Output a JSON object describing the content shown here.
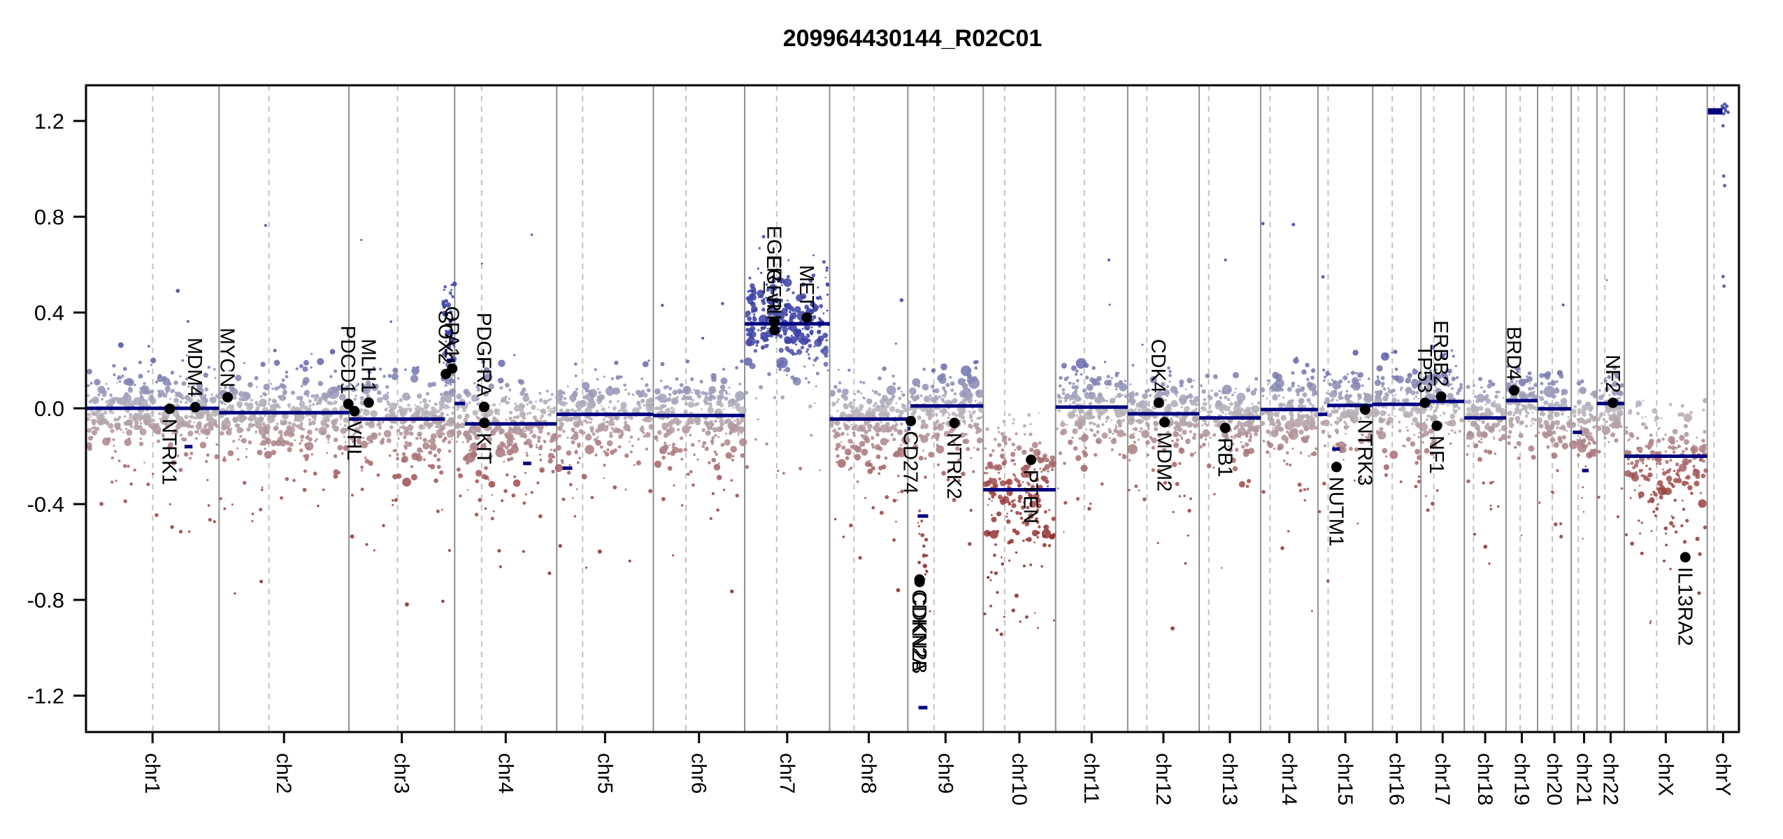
{
  "title": "209964430144_R02C01",
  "chart_data": {
    "type": "scatter",
    "subtype": "genome-wide-copy-number-plot",
    "title": "209964430144_R02C01",
    "xlabel": "",
    "ylabel": "",
    "ylim": [
      -1.35,
      1.35
    ],
    "yticks": [
      1.2,
      0.8,
      0.4,
      0.0,
      -0.4,
      -0.8,
      -1.2
    ],
    "ytick_labels": [
      "1.2",
      "0.8",
      "0.4",
      "0.0",
      "-0.4",
      "-0.8",
      "-1.2"
    ],
    "grid": {
      "chromosome_boundaries": "solid",
      "centromeres": "dashed"
    },
    "noise_seed": 424242,
    "chromosomes": [
      {
        "name": "chr1",
        "size_mb": 249.25,
        "centromere_mb": 125.0,
        "cloud": {
          "level": 0.0,
          "density": 1.6
        }
      },
      {
        "name": "chr2",
        "size_mb": 243.2,
        "centromere_mb": 93.3,
        "cloud": {
          "level": -0.018,
          "density": 1.6
        }
      },
      {
        "name": "chr3",
        "size_mb": 198.0,
        "centromere_mb": 91.0,
        "cloud": {
          "level": -0.045,
          "density": 1.6
        }
      },
      {
        "name": "chr4",
        "size_mb": 191.15,
        "centromere_mb": 50.4,
        "cloud": {
          "level": -0.06,
          "density": 1.6
        }
      },
      {
        "name": "chr5",
        "size_mb": 180.9,
        "centromere_mb": 48.4,
        "cloud": {
          "level": -0.025,
          "density": 1.6
        }
      },
      {
        "name": "chr6",
        "size_mb": 171.1,
        "centromere_mb": 61.0,
        "cloud": {
          "level": -0.03,
          "density": 1.6
        }
      },
      {
        "name": "chr7",
        "size_mb": 159.14,
        "centromere_mb": 59.9,
        "cloud": {
          "level": 0.353,
          "spread": 0.105,
          "negP": 0.12,
          "negScale": 0.22,
          "posP": 0.1,
          "posScale": 0.09,
          "density": 1.9,
          "vmin": -0.28
        }
      },
      {
        "name": "chr8",
        "size_mb": 146.36,
        "centromere_mb": 45.6,
        "cloud": {
          "level": -0.045,
          "density": 1.6
        }
      },
      {
        "name": "chr9",
        "size_mb": 141.2,
        "centromere_mb": 49.0,
        "cloud": {
          "level": 0.0,
          "density": 1.6
        }
      },
      {
        "name": "chr10",
        "size_mb": 135.53,
        "centromere_mb": 40.2,
        "cloud": {
          "level": -0.3,
          "spread": 0.14,
          "negP": 0.32,
          "negScale": 0.22,
          "posP": 0.02,
          "posScale": 0.04,
          "density": 1.7,
          "vmax": -0.01
        }
      },
      {
        "name": "chr11",
        "size_mb": 135.0,
        "centromere_mb": 53.7,
        "cloud": {
          "level": 0.005,
          "density": 1.6
        }
      },
      {
        "name": "chr12",
        "size_mb": 133.85,
        "centromere_mb": 35.8,
        "cloud": {
          "level": -0.023,
          "density": 1.6
        }
      },
      {
        "name": "chr13",
        "size_mb": 115.17,
        "centromere_mb": 17.9,
        "cloud": {
          "level": -0.04,
          "density": 1.6
        }
      },
      {
        "name": "chr14",
        "size_mb": 107.35,
        "centromere_mb": 17.6,
        "cloud": {
          "level": -0.005,
          "density": 1.6
        }
      },
      {
        "name": "chr15",
        "size_mb": 102.53,
        "centromere_mb": 19.0,
        "cloud": {
          "level": 0.0,
          "density": 1.6
        }
      },
      {
        "name": "chr16",
        "size_mb": 90.35,
        "centromere_mb": 36.6,
        "cloud": {
          "level": 0.017,
          "density": 1.6
        }
      },
      {
        "name": "chr17",
        "size_mb": 81.2,
        "centromere_mb": 24.0,
        "cloud": {
          "level": 0.029,
          "density": 1.6
        }
      },
      {
        "name": "chr18",
        "size_mb": 78.08,
        "centromere_mb": 17.2,
        "cloud": {
          "level": -0.04,
          "density": 1.6
        }
      },
      {
        "name": "chr19",
        "size_mb": 59.13,
        "centromere_mb": 26.5,
        "cloud": {
          "level": 0.032,
          "density": 1.6
        }
      },
      {
        "name": "chr20",
        "size_mb": 63.03,
        "centromere_mb": 27.5,
        "cloud": {
          "level": -0.002,
          "density": 1.6
        }
      },
      {
        "name": "chr21",
        "size_mb": 48.13,
        "centromere_mb": 13.2,
        "cloud": {
          "level": -0.07,
          "density": 1.55
        }
      },
      {
        "name": "chr22",
        "size_mb": 51.3,
        "centromere_mb": 14.7,
        "cloud": {
          "level": 0.02,
          "density": 1.6
        }
      },
      {
        "name": "chrX",
        "size_mb": 155.27,
        "centromere_mb": 60.6,
        "cloud": {
          "level": -0.2,
          "spread": 0.11,
          "negP": 0.26,
          "negScale": 0.18,
          "posP": 0.02,
          "posScale": 0.05,
          "density": 1.45,
          "vmax": 0.04
        }
      },
      {
        "name": "chrY",
        "size_mb": 59.37,
        "centromere_mb": 12.5,
        "cloud": {
          "discrete_points": [
            [
              0.55,
              1.27
            ],
            [
              0.62,
              1.262
            ],
            [
              0.5,
              1.255
            ],
            [
              0.44,
              1.248
            ],
            [
              0.58,
              1.242
            ],
            [
              0.66,
              1.236
            ],
            [
              0.52,
              1.23
            ],
            [
              0.47,
              1.262
            ],
            [
              0.56,
              1.252
            ],
            [
              0.4,
              1.24
            ],
            [
              0.5,
              1.18
            ],
            [
              0.52,
              0.97
            ],
            [
              0.55,
              0.93
            ],
            [
              0.5,
              0.55
            ],
            [
              0.53,
              0.51
            ]
          ]
        }
      }
    ],
    "segments": [
      {
        "chr": "chr1",
        "start_frac": 0.0,
        "end_frac": 1.0,
        "value": 0.0
      },
      {
        "chr": "chr1",
        "start_frac": 0.74,
        "end_frac": 0.8,
        "value": -0.16
      },
      {
        "chr": "chr2",
        "start_frac": 0.0,
        "end_frac": 1.0,
        "value": -0.018
      },
      {
        "chr": "chr3",
        "start_frac": 0.0,
        "end_frac": 0.905,
        "value": -0.045
      },
      {
        "chr": "chr3",
        "start_frac": 0.925,
        "end_frac": 1.0,
        "value": 0.2
      },
      {
        "chr": "chr4",
        "start_frac": 0.0,
        "end_frac": 0.1,
        "value": 0.02
      },
      {
        "chr": "chr4",
        "start_frac": 0.1,
        "end_frac": 1.0,
        "value": -0.065
      },
      {
        "chr": "chr4",
        "start_frac": 0.67,
        "end_frac": 0.75,
        "value": -0.23
      },
      {
        "chr": "chr5",
        "start_frac": 0.0,
        "end_frac": 1.0,
        "value": -0.025
      },
      {
        "chr": "chr5",
        "start_frac": 0.06,
        "end_frac": 0.16,
        "value": -0.25
      },
      {
        "chr": "chr6",
        "start_frac": 0.0,
        "end_frac": 1.0,
        "value": -0.03
      },
      {
        "chr": "chr7",
        "start_frac": 0.0,
        "end_frac": 1.0,
        "value": 0.353
      },
      {
        "chr": "chr8",
        "start_frac": 0.0,
        "end_frac": 1.0,
        "value": -0.045
      },
      {
        "chr": "chr9",
        "start_frac": 0.0,
        "end_frac": 0.035,
        "value": -0.085
      },
      {
        "chr": "chr9",
        "start_frac": 0.035,
        "end_frac": 1.0,
        "value": 0.01
      },
      {
        "chr": "chr9",
        "start_frac": 0.13,
        "end_frac": 0.27,
        "value": -0.45
      },
      {
        "chr": "chr9",
        "start_frac": 0.14,
        "end_frac": 0.26,
        "value": -1.25
      },
      {
        "chr": "chr10",
        "start_frac": 0.0,
        "end_frac": 1.0,
        "value": -0.34
      },
      {
        "chr": "chr11",
        "start_frac": 0.0,
        "end_frac": 1.0,
        "value": 0.005
      },
      {
        "chr": "chr12",
        "start_frac": 0.0,
        "end_frac": 1.0,
        "value": -0.023
      },
      {
        "chr": "chr13",
        "start_frac": 0.0,
        "end_frac": 1.0,
        "value": -0.04
      },
      {
        "chr": "chr14",
        "start_frac": 0.0,
        "end_frac": 1.0,
        "value": -0.005
      },
      {
        "chr": "chr15",
        "start_frac": 0.0,
        "end_frac": 0.17,
        "value": -0.025
      },
      {
        "chr": "chr15",
        "start_frac": 0.17,
        "end_frac": 1.0,
        "value": 0.012
      },
      {
        "chr": "chr15",
        "start_frac": 0.26,
        "end_frac": 0.4,
        "value": -0.17
      },
      {
        "chr": "chr16",
        "start_frac": 0.0,
        "end_frac": 1.0,
        "value": 0.017
      },
      {
        "chr": "chr17",
        "start_frac": 0.0,
        "end_frac": 1.0,
        "value": 0.029
      },
      {
        "chr": "chr18",
        "start_frac": 0.0,
        "end_frac": 1.0,
        "value": -0.04
      },
      {
        "chr": "chr19",
        "start_frac": 0.0,
        "end_frac": 1.0,
        "value": 0.032
      },
      {
        "chr": "chr20",
        "start_frac": 0.0,
        "end_frac": 1.0,
        "value": -0.002
      },
      {
        "chr": "chr21",
        "start_frac": 0.06,
        "end_frac": 0.42,
        "value": -0.1
      },
      {
        "chr": "chr21",
        "start_frac": 0.42,
        "end_frac": 0.68,
        "value": -0.26
      },
      {
        "chr": "chr22",
        "start_frac": 0.0,
        "end_frac": 1.0,
        "value": 0.02
      },
      {
        "chr": "chrX",
        "start_frac": 0.0,
        "end_frac": 1.0,
        "value": -0.2
      },
      {
        "chr": "chrY",
        "start_frac": 0.02,
        "end_frac": 0.48,
        "value": 1.24,
        "thick": true
      }
    ],
    "genes": [
      {
        "name": "NTRK1",
        "chr": "chr1",
        "mb": 156.8,
        "value": -0.002,
        "label_side": "below"
      },
      {
        "name": "MDM4",
        "chr": "chr1",
        "mb": 204.5,
        "value": 0.005,
        "label_side": "above"
      },
      {
        "name": "MYCN",
        "chr": "chr2",
        "mb": 16.1,
        "value": 0.046,
        "label_side": "above"
      },
      {
        "name": "PDCD1",
        "chr": "chr2",
        "mb": 242.0,
        "value": 0.018,
        "label_side": "above"
      },
      {
        "name": "VHL",
        "chr": "chr3",
        "mb": 10.2,
        "value": -0.012,
        "label_side": "below"
      },
      {
        "name": "MLH1",
        "chr": "chr3",
        "mb": 37.0,
        "value": 0.024,
        "label_side": "above"
      },
      {
        "name": "SOX2",
        "chr": "chr3",
        "mb": 181.4,
        "value": 0.143,
        "label_side": "above"
      },
      {
        "name": "OPA1",
        "chr": "chr3",
        "mb": 193.3,
        "value": 0.166,
        "label_side": "above"
      },
      {
        "name": "PDGFRA",
        "chr": "chr4",
        "mb": 55.1,
        "value": 0.006,
        "label_side": "above"
      },
      {
        "name": "KIT",
        "chr": "chr4",
        "mb": 55.5,
        "value": -0.061,
        "label_side": "below"
      },
      {
        "name": "EGFR",
        "chr": "chr7",
        "mb": 55.1,
        "value": 0.362,
        "label_side": "above"
      },
      {
        "name": "EGFR_vIII",
        "chr": "chr7",
        "mb": 55.9,
        "value": 0.327,
        "label_side": "above"
      },
      {
        "name": "MET",
        "chr": "chr7",
        "mb": 116.3,
        "value": 0.379,
        "label_side": "above"
      },
      {
        "name": "CD274",
        "chr": "chr9",
        "mb": 5.5,
        "value": -0.053,
        "label_side": "below"
      },
      {
        "name": "CDKN2A",
        "chr": "chr9",
        "mb": 21.97,
        "value": -0.715,
        "label_side": "below"
      },
      {
        "name": "CDKN2B",
        "chr": "chr9",
        "mb": 22.0,
        "value": -0.725,
        "label_side": "below"
      },
      {
        "name": "NTRK2",
        "chr": "chr9",
        "mb": 87.3,
        "value": -0.061,
        "label_side": "below"
      },
      {
        "name": "PTEN",
        "chr": "chr10",
        "mb": 89.6,
        "value": -0.215,
        "label_side": "below"
      },
      {
        "name": "CDK4",
        "chr": "chr12",
        "mb": 58.1,
        "value": 0.023,
        "label_side": "above"
      },
      {
        "name": "MDM2",
        "chr": "chr12",
        "mb": 69.2,
        "value": -0.058,
        "label_side": "below"
      },
      {
        "name": "RB1",
        "chr": "chr13",
        "mb": 48.9,
        "value": -0.082,
        "label_side": "below"
      },
      {
        "name": "NUTM1",
        "chr": "chr15",
        "mb": 34.6,
        "value": -0.245,
        "label_side": "below"
      },
      {
        "name": "NTRK3",
        "chr": "chr15",
        "mb": 88.4,
        "value": -0.005,
        "label_side": "below"
      },
      {
        "name": "TP53",
        "chr": "chr17",
        "mb": 7.57,
        "value": 0.023,
        "label_side": "above"
      },
      {
        "name": "NF1",
        "chr": "chr17",
        "mb": 29.5,
        "value": -0.073,
        "label_side": "below"
      },
      {
        "name": "ERBB2",
        "chr": "chr17",
        "mb": 37.8,
        "value": 0.049,
        "label_side": "above"
      },
      {
        "name": "BRD4",
        "chr": "chr19",
        "mb": 15.3,
        "value": 0.075,
        "label_side": "above"
      },
      {
        "name": "NF2",
        "chr": "chr22",
        "mb": 30.0,
        "value": 0.023,
        "label_side": "above"
      },
      {
        "name": "IL13RA2",
        "chr": "chrX",
        "mb": 114.25,
        "value": -0.622,
        "label_side": "below"
      }
    ],
    "extra_clusters": [
      {
        "chr": "chr3",
        "start_frac": 0.89,
        "end_frac": 1.0,
        "n": 80,
        "v_min": 0.06,
        "v_max": 0.52,
        "note": "3q terminal gain cloud"
      },
      {
        "chr": "chr9",
        "start_frac": 0.13,
        "end_frac": 0.27,
        "n": 16,
        "v_min": -0.75,
        "v_max": -0.35,
        "note": "CDKN2A/B focal deletion probes"
      }
    ],
    "colors": {
      "segment": "#000080",
      "gene_marker": "#000000",
      "gene_label": "#000000",
      "boundary_line": "#909090",
      "centromere_line": "#c2c2c2",
      "axis": "#000000",
      "point_neutral": "#b7b5bd",
      "point_gain": "#3a3fa5",
      "point_loss": "#a04747",
      "point_deep_loss": "#8a2222",
      "background": "#ffffff"
    }
  },
  "layout_labels": {
    "x_axis_chromosomes": [
      "chr1",
      "chr2",
      "chr3",
      "chr4",
      "chr5",
      "chr6",
      "chr7",
      "chr8",
      "chr9",
      "chr10",
      "chr11",
      "chr12",
      "chr13",
      "chr14",
      "chr15",
      "chr16",
      "chr17",
      "chr18",
      "chr19",
      "chr20",
      "chr21",
      "chr22",
      "chrX",
      "chrY"
    ]
  }
}
